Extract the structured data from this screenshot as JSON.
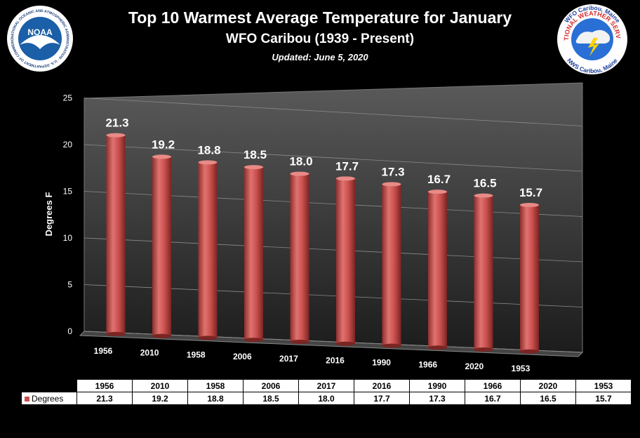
{
  "header": {
    "title": "Top 10 Warmest Average Temperature for January",
    "subtitle": "WFO Caribou (1939 - Present)",
    "updated": "Updated: June 5, 2020"
  },
  "logos": {
    "noaa": {
      "text": "NOAA",
      "ring_text": "NATIONAL OCEANIC AND ATMOSPHERIC ADMINISTRATION · U.S. DEPARTMENT OF COMMERCE",
      "color": "#1a5fa8"
    },
    "nws": {
      "top": "WFO Caribou, Maine",
      "ring_text": "NATIONAL WEATHER SERVICE",
      "bottom": "NWS Caribou, Maine",
      "color": "#d42a2a"
    }
  },
  "chart_data": {
    "type": "bar",
    "categories": [
      "1956",
      "2010",
      "1958",
      "2006",
      "2017",
      "2016",
      "1990",
      "1966",
      "2020",
      "1953"
    ],
    "series": [
      {
        "name": "Degrees",
        "values": [
          21.3,
          19.2,
          18.8,
          18.5,
          18.0,
          17.7,
          17.3,
          16.7,
          16.5,
          15.7
        ],
        "color": "#c9504d"
      }
    ],
    "data_labels": [
      "21.3",
      "19.2",
      "18.8",
      "18.5",
      "18.0",
      "17.7",
      "17.3",
      "16.7",
      "16.5",
      "15.7"
    ],
    "ylabel": "Degrees F",
    "xlabel": "",
    "ylim": [
      0,
      25
    ],
    "yticks": [
      "0",
      "5",
      "10",
      "15",
      "20",
      "25"
    ],
    "grid": true,
    "legend": "data table below chart",
    "background": "#000000"
  },
  "table": {
    "row_label": "Degrees",
    "values": [
      "21.3",
      "19.2",
      "18.8",
      "18.5",
      "18.0",
      "17.7",
      "17.3",
      "16.7",
      "16.5",
      "15.7"
    ]
  }
}
